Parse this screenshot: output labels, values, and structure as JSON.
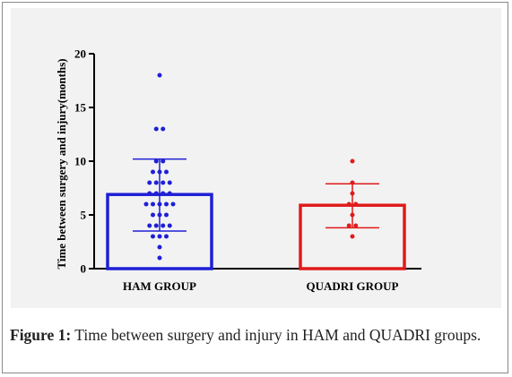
{
  "chart_data": {
    "type": "bar",
    "title": "",
    "xlabel": "",
    "ylabel": "Time between surgery and injury(months)",
    "ylim": [
      0,
      20
    ],
    "yticks": [
      0,
      5,
      10,
      15,
      20
    ],
    "categories": [
      "HAM GROUP",
      "QUADRI GROUP"
    ],
    "values": [
      6.9,
      5.9
    ],
    "error_upper": [
      10.2,
      7.9
    ],
    "error_lower": [
      3.5,
      3.8
    ],
    "colors": [
      "#1f1fd6",
      "#e01b1b"
    ],
    "points": [
      [
        18,
        13,
        13,
        10,
        10,
        9,
        9,
        9,
        8,
        8,
        8,
        8,
        7,
        7,
        7,
        7,
        6,
        6,
        6,
        6,
        6,
        5,
        5,
        5,
        4,
        4,
        4,
        4,
        3,
        3,
        3,
        2,
        1
      ],
      [
        10,
        8,
        7,
        6,
        6,
        5,
        4,
        4,
        3
      ]
    ],
    "grid": false,
    "legend": "none"
  },
  "caption": {
    "label": "Figure 1:",
    "text": " Time between surgery and injury in HAM and QUADRI groups."
  }
}
